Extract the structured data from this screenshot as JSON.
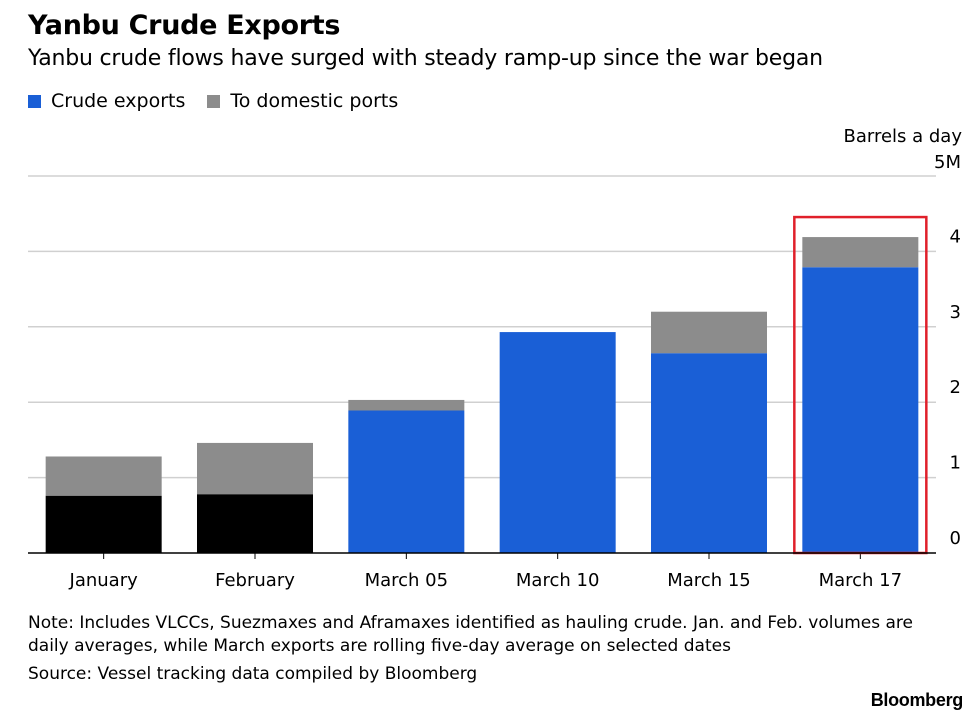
{
  "chart_data": {
    "type": "bar",
    "stacked": true,
    "title": "Yanbu Crude Exports",
    "subtitle": "Yanbu crude flows have surged with steady ramp-up since the war began",
    "unit_label": "Barrels a day",
    "categories": [
      "January",
      "February",
      "March 05",
      "March 10",
      "March 15",
      "March 17"
    ],
    "series": [
      {
        "name": "Crude exports",
        "color": "#1a5fd6",
        "values": [
          0.76,
          0.78,
          1.89,
          2.93,
          2.65,
          3.79
        ]
      },
      {
        "name": "To domestic ports",
        "color": "#8c8c8c",
        "values": [
          0.52,
          0.68,
          0.14,
          0.0,
          0.55,
          0.4
        ]
      }
    ],
    "bar_colors_override": {
      "January": "#000000",
      "February": "#000000"
    },
    "ylim": [
      0,
      5
    ],
    "yticks": [
      "0",
      "1",
      "2",
      "3",
      "4",
      "5M"
    ],
    "grid": true,
    "legend_placement": "top-left",
    "highlight_category": "March 17",
    "highlight_color": "#e0202a"
  },
  "note": "Note: Includes VLCCs, Suezmaxes and Aframaxes identified as hauling crude. Jan. and Feb. volumes are daily averages, while March exports are rolling five-day average on selected dates",
  "source": "Source: Vessel tracking data compiled by Bloomberg",
  "logo": "Bloomberg"
}
